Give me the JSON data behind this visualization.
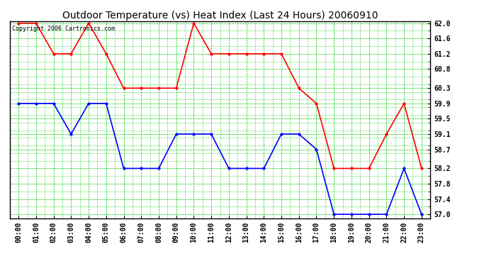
{
  "title": "Outdoor Temperature (vs) Heat Index (Last 24 Hours) 20060910",
  "copyright": "Copyright 2006 Cartronics.com",
  "hours": [
    "00:00",
    "01:00",
    "02:00",
    "03:00",
    "04:00",
    "05:00",
    "06:00",
    "07:00",
    "08:00",
    "09:00",
    "10:00",
    "11:00",
    "12:00",
    "13:00",
    "14:00",
    "15:00",
    "16:00",
    "17:00",
    "18:00",
    "19:00",
    "20:00",
    "21:00",
    "22:00",
    "23:00"
  ],
  "red_data": [
    62.0,
    62.0,
    61.2,
    61.2,
    62.0,
    61.2,
    60.3,
    60.3,
    60.3,
    60.3,
    62.0,
    61.2,
    61.2,
    61.2,
    61.2,
    61.2,
    60.3,
    59.9,
    58.2,
    58.2,
    58.2,
    59.1,
    59.9,
    58.2
  ],
  "blue_data": [
    59.9,
    59.9,
    59.9,
    59.1,
    59.9,
    59.9,
    58.2,
    58.2,
    58.2,
    59.1,
    59.1,
    59.1,
    58.2,
    58.2,
    58.2,
    59.1,
    59.1,
    58.7,
    57.0,
    57.0,
    57.0,
    57.0,
    58.2,
    57.0
  ],
  "red_color": "#ff0000",
  "blue_color": "#0000ff",
  "bg_color": "#ffffff",
  "grid_color": "#00cc00",
  "ymin": 57.0,
  "ymax": 62.0,
  "yticks": [
    57.0,
    57.4,
    57.8,
    58.2,
    58.7,
    59.1,
    59.5,
    59.9,
    60.3,
    60.8,
    61.2,
    61.6,
    62.0
  ],
  "title_fontsize": 10,
  "copyright_fontsize": 6,
  "axis_label_fontsize": 7,
  "marker": "o",
  "marker_size": 2.5,
  "line_width": 1.2
}
